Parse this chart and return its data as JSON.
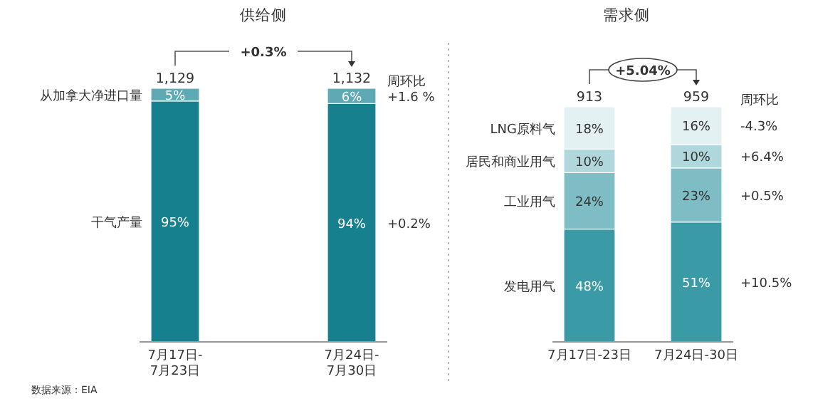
{
  "chart_data": [
    {
      "type": "bar",
      "title": "供给侧",
      "categories": [
        "7月17日-7月23日",
        "7月24日-7月30日"
      ],
      "stacked": true,
      "series": [
        {
          "name": "干气产量",
          "color": "#17808f",
          "values": [
            95,
            94
          ],
          "value_labels": [
            "95%",
            "94%"
          ]
        },
        {
          "name": "从加拿大净进口量",
          "color": "#5ea9b3",
          "values": [
            5,
            6
          ],
          "value_labels": [
            "5%",
            "6%"
          ]
        }
      ],
      "annotations": [
        "+0.3%",
        "1,129",
        "1,132",
        "周环比",
        "+0.2%",
        "+1.6 %",
        "数据来源：EIA"
      ]
    },
    {
      "type": "bar",
      "title": "需求侧",
      "categories": [
        "7月17日-23日",
        "7月24日-30日"
      ],
      "stacked": true,
      "series": [
        {
          "name": "发电用气",
          "color": "#3a9aa6",
          "values": [
            48,
            51
          ],
          "value_labels": [
            "48%",
            "51%"
          ]
        },
        {
          "name": "工业用气",
          "color": "#7fbdc5",
          "values": [
            24,
            23
          ],
          "value_labels": [
            "24%",
            "23%"
          ]
        },
        {
          "name": "居民和商业用气",
          "color": "#b0d7db",
          "values": [
            10,
            10
          ],
          "value_labels": [
            "10%",
            "10%"
          ]
        },
        {
          "name": "LNG原料气",
          "color": "#e4f1f2",
          "values": [
            18,
            16
          ],
          "value_labels": [
            "18%",
            "16%"
          ]
        }
      ],
      "annotations": [
        "+5.04%",
        "913",
        "959",
        "周环比",
        "+10.5%",
        "+0.5%",
        "+6.4%",
        "-4.3%"
      ]
    }
  ]
}
